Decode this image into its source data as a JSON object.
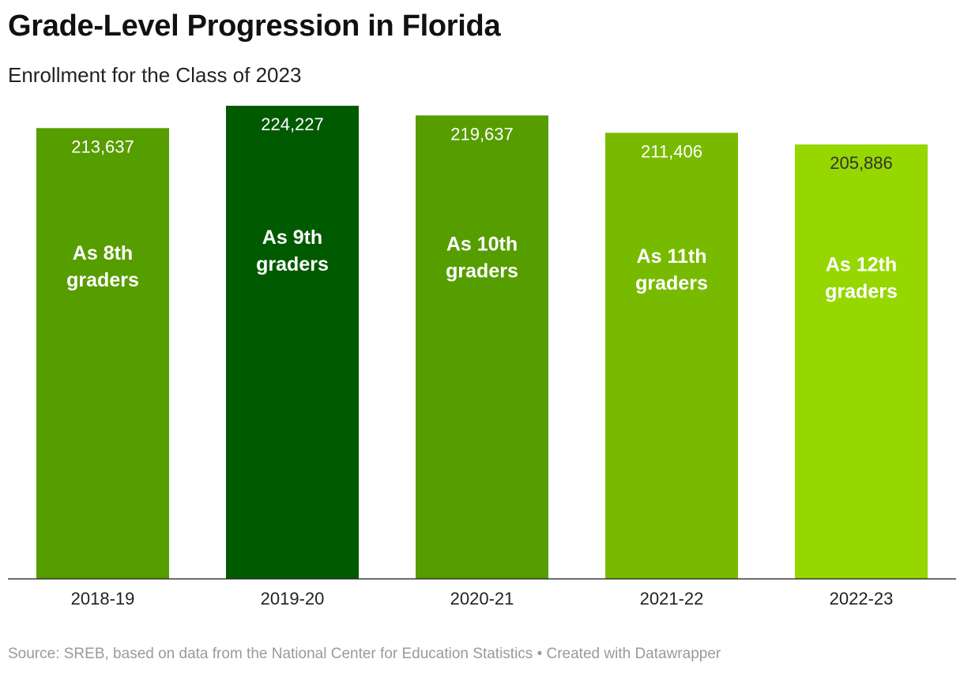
{
  "header": {
    "title": "Grade-Level Progression in Florida",
    "subtitle": "Enrollment for the Class of 2023"
  },
  "footer": {
    "source": "Source: SREB, based on data from the National Center for Education Statistics • Created with Datawrapper"
  },
  "chart_data": {
    "type": "bar",
    "title": "Grade-Level Progression in Florida",
    "subtitle": "Enrollment for the Class of 2023",
    "categories": [
      "2018-19",
      "2019-20",
      "2020-21",
      "2021-22",
      "2022-23"
    ],
    "values": [
      213637,
      224227,
      219637,
      211406,
      205886
    ],
    "value_labels": [
      "213,637",
      "224,227",
      "219,637",
      "211,406",
      "205,886"
    ],
    "bar_annotations": [
      [
        "As 8th",
        "graders"
      ],
      [
        "As 9th",
        "graders"
      ],
      [
        "As 10th",
        "graders"
      ],
      [
        "As 11th",
        "graders"
      ],
      [
        "As 12th",
        "graders"
      ]
    ],
    "colors": [
      "#569d00",
      "#005a00",
      "#569d00",
      "#78ba00",
      "#96d700"
    ],
    "value_label_colors": [
      "#ffffff",
      "#ffffff",
      "#ffffff",
      "#ffffff",
      "#333333"
    ],
    "ylim": [
      0,
      224227
    ],
    "grid": false,
    "xlabel": "",
    "ylabel": ""
  }
}
